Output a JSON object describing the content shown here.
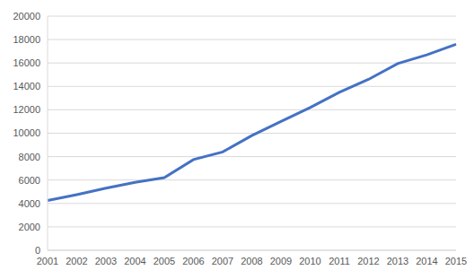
{
  "chart_data": {
    "type": "line",
    "categories": [
      "2001",
      "2002",
      "2003",
      "2004",
      "2005",
      "2006",
      "2007",
      "2008",
      "2009",
      "2010",
      "2011",
      "2012",
      "2013",
      "2014",
      "2015"
    ],
    "values": [
      4250,
      4750,
      5300,
      5800,
      6200,
      7750,
      8400,
      9800,
      11000,
      12200,
      13500,
      14600,
      15950,
      16700,
      17600
    ],
    "color": "#4472c4",
    "ylim": [
      0,
      20000
    ],
    "yticks": [
      0,
      2000,
      4000,
      6000,
      8000,
      10000,
      12000,
      14000,
      16000,
      18000,
      20000
    ],
    "grid": true
  }
}
